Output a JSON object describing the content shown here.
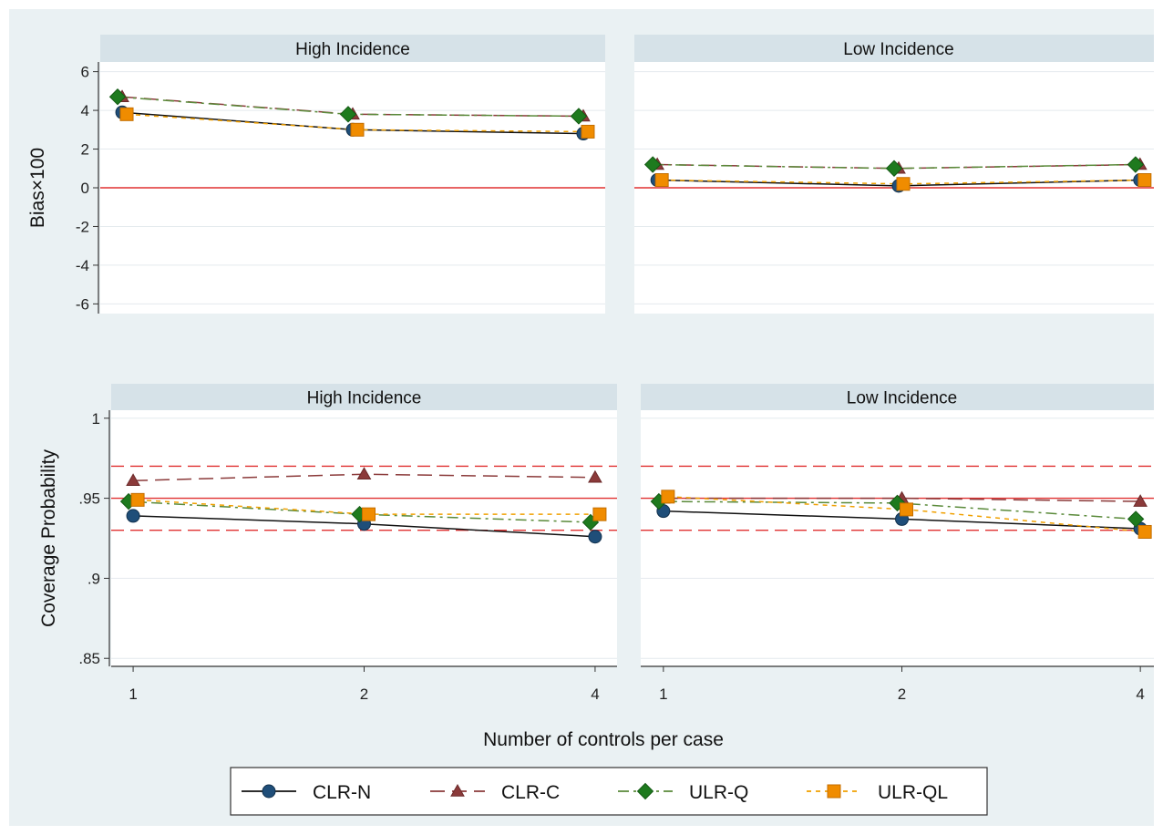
{
  "chart_data": [
    {
      "type": "line",
      "panel": "top-left",
      "title": "High Incidence",
      "ylabel": "Bias×100",
      "ylim": [
        -6.5,
        6.5
      ],
      "yticks": [
        -6,
        -4,
        -2,
        0,
        2,
        4,
        6
      ],
      "ytick_labels": [
        "-6",
        "-4",
        "-2",
        "0",
        "2",
        "4",
        "6"
      ],
      "xlim": [
        0.9,
        4.1
      ],
      "x": [
        1,
        2,
        4
      ],
      "reference_lines": [
        {
          "y": 0,
          "color": "#e03030",
          "style": "solid"
        }
      ],
      "series": [
        {
          "name": "CLR-N",
          "values": [
            3.9,
            3.0,
            2.8
          ]
        },
        {
          "name": "CLR-C",
          "values": [
            4.7,
            3.8,
            3.7
          ]
        },
        {
          "name": "ULR-Q",
          "values": [
            4.7,
            3.8,
            3.7
          ]
        },
        {
          "name": "ULR-QL",
          "values": [
            3.8,
            3.0,
            2.9
          ]
        }
      ]
    },
    {
      "type": "line",
      "panel": "top-right",
      "title": "Low Incidence",
      "ylim": [
        -6.5,
        6.5
      ],
      "yticks": [
        -6,
        -4,
        -2,
        0,
        2,
        4,
        6
      ],
      "xlim": [
        0.9,
        4.1
      ],
      "x": [
        1,
        2,
        4
      ],
      "reference_lines": [
        {
          "y": 0,
          "color": "#e03030",
          "style": "solid"
        }
      ],
      "series": [
        {
          "name": "CLR-N",
          "values": [
            0.4,
            0.1,
            0.4
          ]
        },
        {
          "name": "CLR-C",
          "values": [
            1.2,
            1.0,
            1.2
          ]
        },
        {
          "name": "ULR-Q",
          "values": [
            1.2,
            1.0,
            1.2
          ]
        },
        {
          "name": "ULR-QL",
          "values": [
            0.4,
            0.2,
            0.4
          ]
        }
      ]
    },
    {
      "type": "line",
      "panel": "bottom-left",
      "title": "High Incidence",
      "ylabel": "Coverage Probability",
      "ylim": [
        0.845,
        1.005
      ],
      "yticks": [
        0.85,
        0.9,
        0.95,
        1.0
      ],
      "ytick_labels": [
        ".85",
        ".9",
        ".95",
        "1"
      ],
      "xlim": [
        0.9,
        4.1
      ],
      "x": [
        1,
        2,
        4
      ],
      "xtick_labels": [
        "1",
        "2",
        "4"
      ],
      "reference_lines": [
        {
          "y": 0.95,
          "color": "#e03030",
          "style": "solid"
        },
        {
          "y": 0.97,
          "color": "#e03030",
          "style": "dashed"
        },
        {
          "y": 0.93,
          "color": "#e03030",
          "style": "dashed"
        }
      ],
      "series": [
        {
          "name": "CLR-N",
          "values": [
            0.939,
            0.934,
            0.926
          ]
        },
        {
          "name": "CLR-C",
          "values": [
            0.961,
            0.965,
            0.963
          ]
        },
        {
          "name": "ULR-Q",
          "values": [
            0.948,
            0.94,
            0.935
          ]
        },
        {
          "name": "ULR-QL",
          "values": [
            0.949,
            0.94,
            0.94
          ]
        }
      ]
    },
    {
      "type": "line",
      "panel": "bottom-right",
      "title": "Low Incidence",
      "ylim": [
        0.845,
        1.005
      ],
      "yticks": [
        0.85,
        0.9,
        0.95,
        1.0
      ],
      "xlim": [
        0.9,
        4.1
      ],
      "x": [
        1,
        2,
        4
      ],
      "xtick_labels": [
        "1",
        "2",
        "4"
      ],
      "reference_lines": [
        {
          "y": 0.95,
          "color": "#e03030",
          "style": "solid"
        },
        {
          "y": 0.97,
          "color": "#e03030",
          "style": "dashed"
        },
        {
          "y": 0.93,
          "color": "#e03030",
          "style": "dashed"
        }
      ],
      "series": [
        {
          "name": "CLR-N",
          "values": [
            0.942,
            0.937,
            0.931
          ]
        },
        {
          "name": "CLR-C",
          "values": [
            0.95,
            0.95,
            0.948
          ]
        },
        {
          "name": "ULR-Q",
          "values": [
            0.948,
            0.947,
            0.937
          ]
        },
        {
          "name": "ULR-QL",
          "values": [
            0.951,
            0.943,
            0.929
          ]
        }
      ]
    }
  ],
  "xlabel": "Number of controls per case",
  "legend": {
    "placement": "bottom",
    "entries": [
      {
        "name": "CLR-N",
        "marker": "circle",
        "line": "solid",
        "color": "#1f4e79",
        "line_color": "#111111"
      },
      {
        "name": "CLR-C",
        "marker": "triangle",
        "line": "longdash",
        "color": "#8b3a3a",
        "line_color": "#111111"
      },
      {
        "name": "ULR-Q",
        "marker": "diamond",
        "line": "dashdot",
        "color": "#1e7a1e",
        "line_color": "#5a8a3a"
      },
      {
        "name": "ULR-QL",
        "marker": "square",
        "line": "shortdash",
        "color": "#f08c00",
        "line_color": "#f0a000"
      }
    ]
  },
  "colors": {
    "background": "#eaf1f3",
    "strip": "#d6e2e8",
    "plot_area": "#ffffff",
    "gridline": "#e4eaee",
    "reference": "#e03030"
  }
}
